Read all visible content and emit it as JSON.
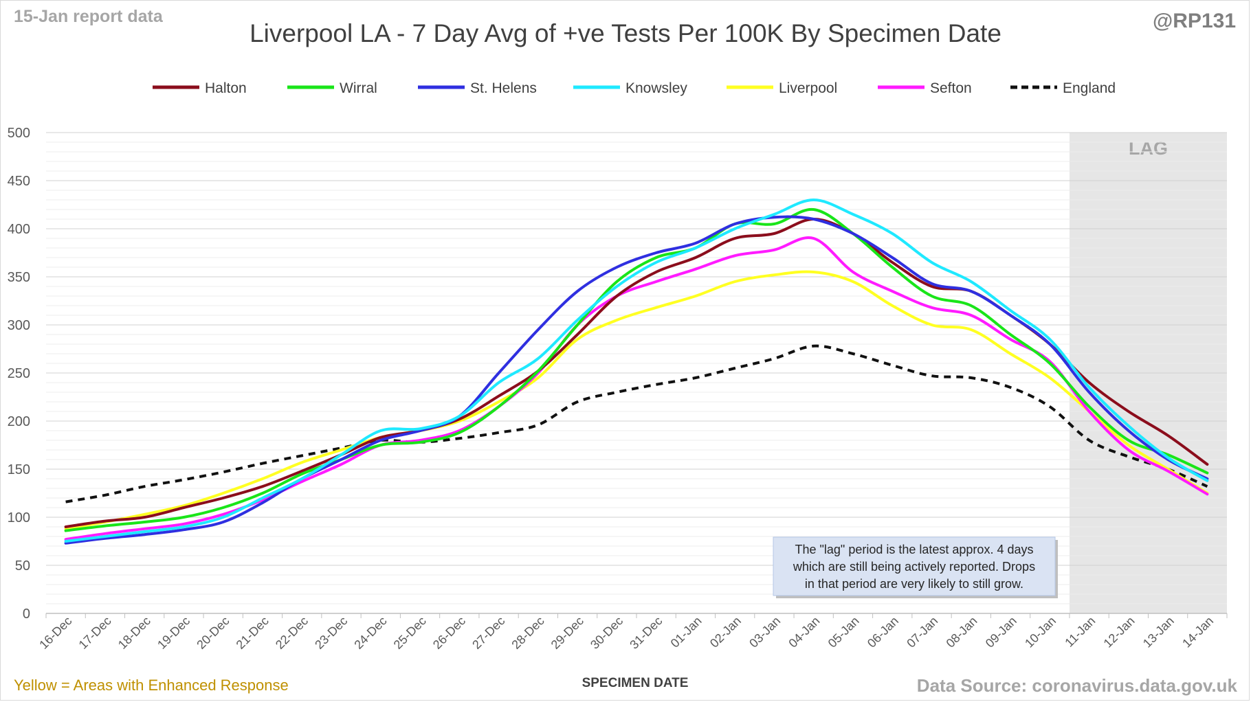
{
  "header": {
    "report_date": "15-Jan report data",
    "handle": "@RP131"
  },
  "footer": {
    "note": "Yellow = Areas with Enhanced Response",
    "source": "Data Source: coronavirus.data.gov.uk"
  },
  "lag_note": [
    "The \"lag\" period is the latest approx. 4 days",
    "which are still being actively reported.  Drops",
    "in that period are very likely to still grow."
  ],
  "colors": {
    "Halton": "#8b0d1c",
    "Wirral": "#19e519",
    "St. Helens": "#2f2fe0",
    "Knowsley": "#1fe9ff",
    "Liverpool": "#ffff22",
    "Sefton": "#ff1bff",
    "England": "#111111",
    "lag_band": "#e6e6e6",
    "lag_text": "#a6a6a6",
    "note_box": "#dae3f3"
  },
  "chart_data": {
    "type": "line",
    "title": "Liverpool LA - 7 Day Avg of +ve Tests Per 100K By Specimen Date",
    "xlabel": "SPECIMEN DATE",
    "ylabel": "",
    "ylim": [
      0,
      500
    ],
    "yticks": [
      0,
      50,
      100,
      150,
      200,
      250,
      300,
      350,
      400,
      450,
      500
    ],
    "grid": true,
    "legend_position": "top",
    "categories": [
      "16-Dec",
      "17-Dec",
      "18-Dec",
      "19-Dec",
      "20-Dec",
      "21-Dec",
      "22-Dec",
      "23-Dec",
      "24-Dec",
      "25-Dec",
      "26-Dec",
      "27-Dec",
      "28-Dec",
      "29-Dec",
      "30-Dec",
      "31-Dec",
      "01-Jan",
      "02-Jan",
      "03-Jan",
      "04-Jan",
      "05-Jan",
      "06-Jan",
      "07-Jan",
      "08-Jan",
      "09-Jan",
      "10-Jan",
      "11-Jan",
      "12-Jan",
      "13-Jan",
      "14-Jan"
    ],
    "shaded_region": {
      "label": "LAG",
      "from": "11-Jan",
      "to": "14-Jan"
    },
    "series": [
      {
        "name": "Halton",
        "style": "solid",
        "values": [
          90,
          96,
          100,
          110,
          120,
          132,
          148,
          165,
          183,
          190,
          202,
          226,
          252,
          290,
          330,
          355,
          370,
          390,
          395,
          410,
          395,
          365,
          340,
          335,
          310,
          280,
          240,
          210,
          185,
          155
        ]
      },
      {
        "name": "Wirral",
        "style": "solid",
        "values": [
          86,
          91,
          95,
          100,
          110,
          125,
          145,
          160,
          175,
          178,
          188,
          215,
          252,
          300,
          345,
          370,
          380,
          405,
          405,
          420,
          395,
          360,
          330,
          320,
          290,
          260,
          215,
          180,
          165,
          146
        ]
      },
      {
        "name": "St. Helens",
        "style": "solid",
        "values": [
          73,
          78,
          82,
          87,
          95,
          115,
          140,
          160,
          180,
          190,
          205,
          250,
          295,
          335,
          360,
          375,
          385,
          405,
          412,
          410,
          395,
          370,
          343,
          335,
          310,
          280,
          230,
          190,
          160,
          140
        ]
      },
      {
        "name": "Knowsley",
        "style": "solid",
        "values": [
          75,
          80,
          85,
          90,
          100,
          120,
          140,
          165,
          190,
          192,
          205,
          240,
          265,
          305,
          340,
          365,
          380,
          400,
          415,
          430,
          415,
          395,
          365,
          345,
          315,
          285,
          235,
          195,
          162,
          138
        ]
      },
      {
        "name": "Liverpool",
        "style": "solid",
        "values": [
          88,
          95,
          103,
          112,
          125,
          140,
          157,
          170,
          183,
          190,
          200,
          220,
          245,
          285,
          305,
          318,
          330,
          345,
          352,
          355,
          345,
          320,
          300,
          295,
          270,
          245,
          210,
          175,
          150,
          125
        ]
      },
      {
        "name": "Sefton",
        "style": "solid",
        "values": [
          77,
          83,
          88,
          93,
          103,
          118,
          137,
          155,
          175,
          180,
          190,
          215,
          250,
          300,
          330,
          345,
          358,
          372,
          378,
          390,
          355,
          335,
          318,
          310,
          285,
          262,
          210,
          170,
          148,
          124
        ]
      },
      {
        "name": "England",
        "style": "dashed",
        "values": [
          116,
          123,
          132,
          139,
          147,
          156,
          164,
          172,
          180,
          178,
          182,
          188,
          196,
          220,
          230,
          238,
          245,
          255,
          265,
          278,
          270,
          258,
          247,
          245,
          235,
          215,
          180,
          163,
          150,
          132
        ]
      }
    ]
  }
}
